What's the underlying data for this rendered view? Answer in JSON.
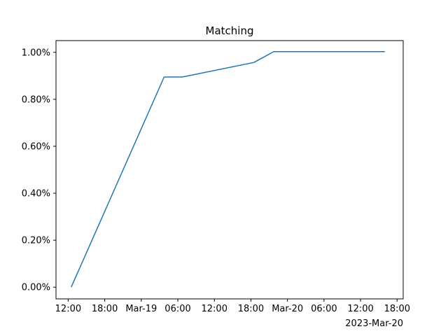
{
  "chart_data": {
    "type": "line",
    "title": "Matching",
    "xlabel": "",
    "ylabel": "",
    "x_offset_label": "2023-Mar-20",
    "x_ticks": [
      {
        "t": "2023-03-18T12:00",
        "label": "12:00"
      },
      {
        "t": "2023-03-18T18:00",
        "label": "18:00"
      },
      {
        "t": "2023-03-19T00:00",
        "label": "Mar-19"
      },
      {
        "t": "2023-03-19T06:00",
        "label": "06:00"
      },
      {
        "t": "2023-03-19T12:00",
        "label": "12:00"
      },
      {
        "t": "2023-03-19T18:00",
        "label": "18:00"
      },
      {
        "t": "2023-03-20T00:00",
        "label": "Mar-20"
      },
      {
        "t": "2023-03-20T06:00",
        "label": "06:00"
      },
      {
        "t": "2023-03-20T12:00",
        "label": "12:00"
      },
      {
        "t": "2023-03-20T18:00",
        "label": "18:00"
      }
    ],
    "y_ticks": [
      {
        "v": 0.0,
        "label": "0.00%"
      },
      {
        "v": 0.2,
        "label": "0.20%"
      },
      {
        "v": 0.4,
        "label": "0.40%"
      },
      {
        "v": 0.6,
        "label": "0.60%"
      },
      {
        "v": 0.8,
        "label": "0.80%"
      },
      {
        "v": 1.0,
        "label": "1.00%"
      }
    ],
    "xlim": [
      "2023-03-18T10:00",
      "2023-03-20T19:00"
    ],
    "ylim": [
      -0.05,
      1.05
    ],
    "grid": false,
    "series": [
      {
        "color": "#1f77b4",
        "points": [
          {
            "t": "2023-03-18T12:30",
            "y": 0.0
          },
          {
            "t": "2023-03-19T03:45",
            "y": 0.895
          },
          {
            "t": "2023-03-19T06:45",
            "y": 0.895
          },
          {
            "t": "2023-03-19T18:30",
            "y": 0.957
          },
          {
            "t": "2023-03-19T21:45",
            "y": 1.003
          },
          {
            "t": "2023-03-20T16:00",
            "y": 1.003
          }
        ]
      }
    ]
  }
}
